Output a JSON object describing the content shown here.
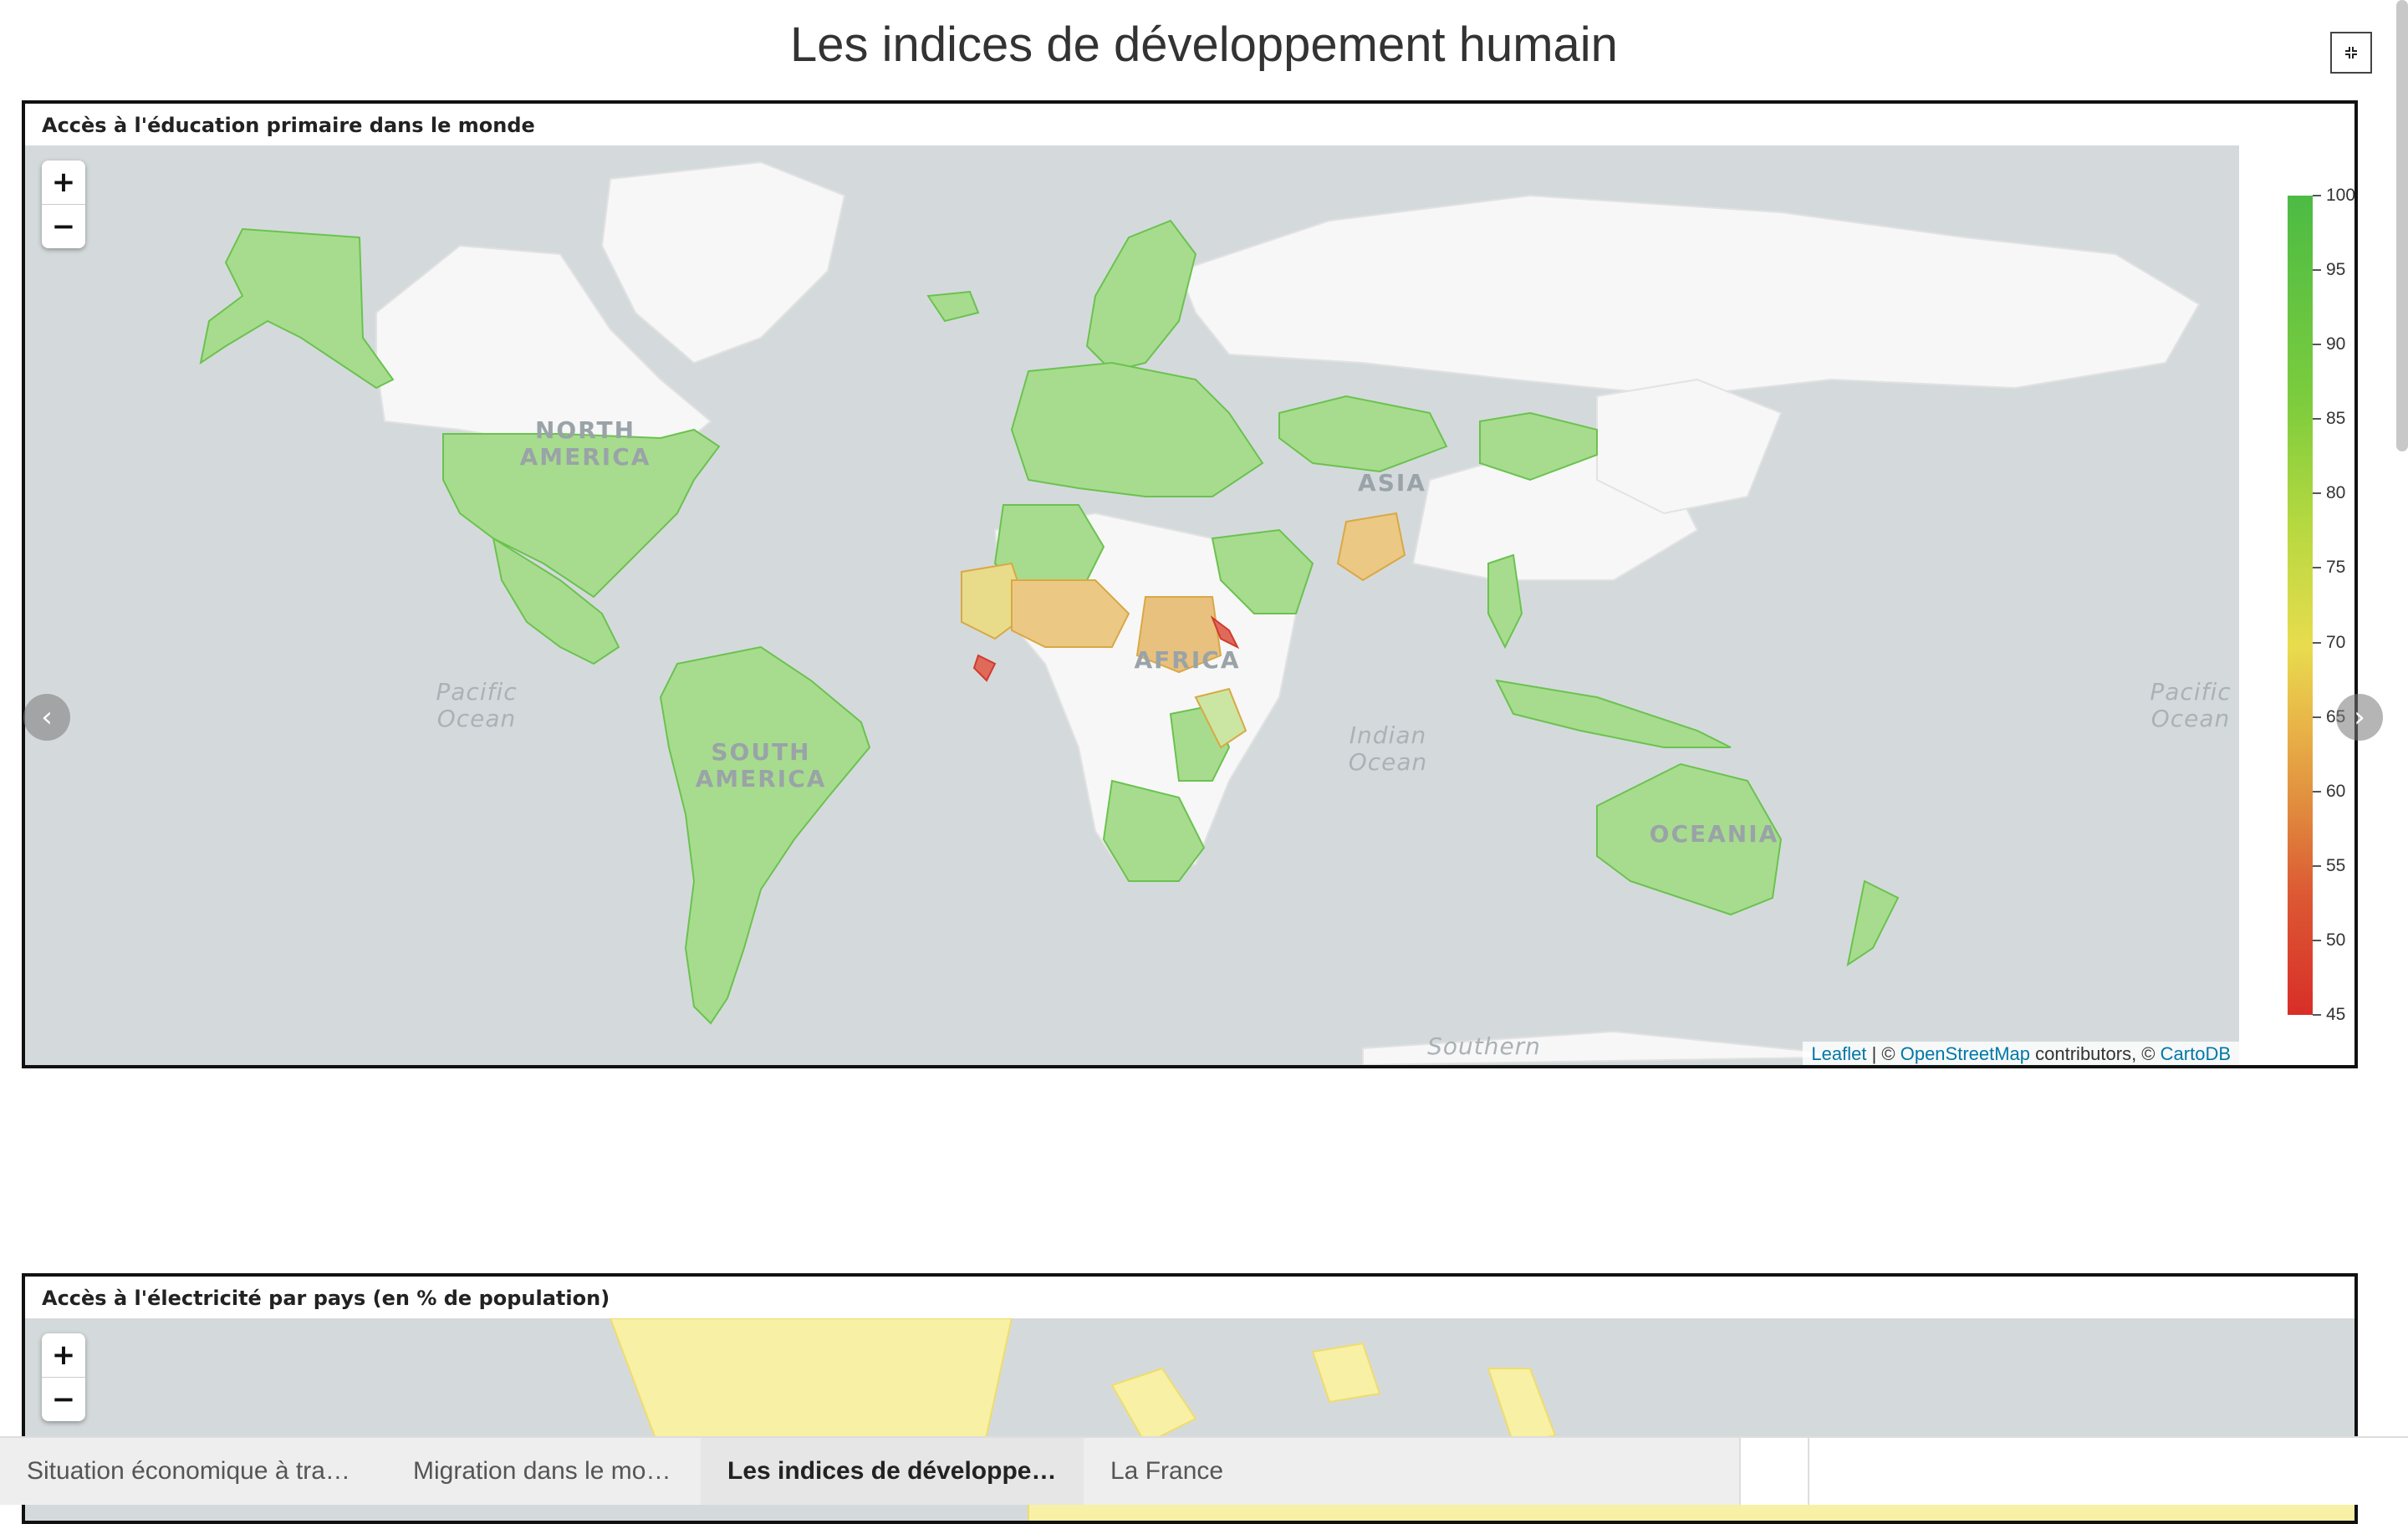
{
  "page": {
    "title": "Les indices de développement humain"
  },
  "collapse_icon": "collapse-icon",
  "map1": {
    "title": "Accès à l'éducation primaire dans le monde",
    "zoom_in": "+",
    "zoom_out": "−",
    "attribution": {
      "leaflet": "Leaflet",
      "sep1": " | © ",
      "osm": "OpenStreetMap",
      "contrib": " contributors, © ",
      "cartodb": "CartoDB"
    },
    "legend": {
      "labels": [
        "100",
        "95",
        "90",
        "85",
        "80",
        "75",
        "70",
        "65",
        "60",
        "55",
        "50",
        "45"
      ],
      "colors": {
        "high": "#4cbb44",
        "mid": "#e8dc4e",
        "low": "#d82e28"
      }
    },
    "continents": {
      "north_america": [
        "NORTH",
        "AMERICA"
      ],
      "south_america": [
        "SOUTH",
        "AMERICA"
      ],
      "africa": "AFRICA",
      "asia": "ASIA",
      "oceania": "OCEANIA"
    },
    "oceans": {
      "pacific_left": [
        "Pacific",
        "Ocean"
      ],
      "pacific_right": [
        "Pacific",
        "Ocean"
      ],
      "indian": [
        "Indian",
        "Ocean"
      ],
      "southern": "Southern"
    }
  },
  "map2": {
    "title": "Accès à l'électricité par pays (en % de population)",
    "zoom_in": "+",
    "zoom_out": "−"
  },
  "carousel": {
    "prev_icon": "chevron-left-icon",
    "next_icon": "chevron-right-icon"
  },
  "tabs": [
    {
      "label": "Situation économique à trave…"
    },
    {
      "label": "Migration dans le monde"
    },
    {
      "label": "Les indices de développeme…"
    },
    {
      "label": "La France"
    }
  ]
}
